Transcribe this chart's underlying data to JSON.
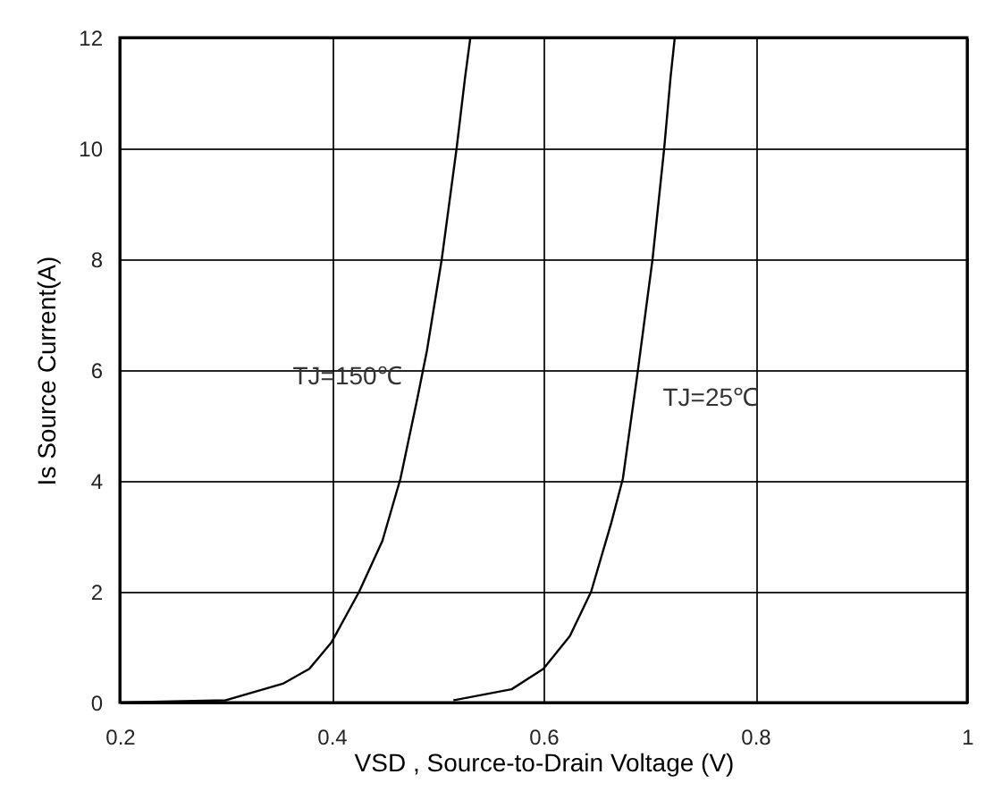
{
  "chart_data": {
    "type": "line",
    "xlabel": "VSD , Source-to-Drain Voltage (V)",
    "ylabel": "Is Source Current(A)",
    "xlim": [
      0.2,
      1
    ],
    "xticks": [
      0.2,
      0.4,
      0.6,
      0.8,
      1
    ],
    "ylim": [
      0,
      12
    ],
    "yticks": [
      0,
      2,
      4,
      6,
      8,
      10,
      12
    ],
    "grid": true,
    "marker": "none",
    "line_style": "solid",
    "series": [
      {
        "name": "TJ=150℃",
        "color": "#000000",
        "x": [
          0.2,
          0.3,
          0.354,
          0.379,
          0.4,
          0.426,
          0.448,
          0.465,
          0.481,
          0.49,
          0.504,
          0.518,
          0.526,
          0.531
        ],
        "values": [
          0,
          0.04,
          0.34,
          0.61,
          1.09,
          2.0,
          2.92,
          4.04,
          5.49,
          6.35,
          8.0,
          10.0,
          11.28,
          12
        ]
      },
      {
        "name": "TJ=25℃",
        "color": "#000000",
        "x": [
          0.515,
          0.57,
          0.6,
          0.625,
          0.645,
          0.664,
          0.675,
          0.689,
          0.703,
          0.714,
          0.72,
          0.724
        ],
        "values": [
          0.04,
          0.24,
          0.61,
          1.2,
          2.0,
          3.24,
          4.04,
          5.97,
          8.0,
          10.0,
          11.28,
          12
        ]
      }
    ]
  }
}
